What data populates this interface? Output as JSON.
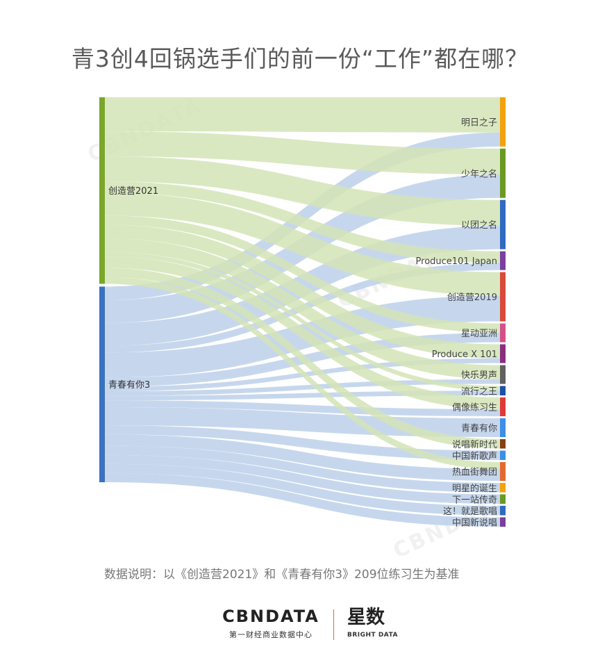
{
  "title": "青3创4回锅选手们的前一份“工作”都在哪？",
  "note": "数据说明：以《创造营2021》和《青春有你3》209位练习生为基准",
  "footer": {
    "brand1_main": "CBNDATA",
    "brand1_sub": "第一财经商业数据中心",
    "brand2_main": "星数",
    "brand2_sub": "BRIGHT DATA"
  },
  "watermark": "CBNDATA",
  "chart_data": {
    "type": "sankey",
    "sources": [
      {
        "name": "创造营2021",
        "color": "#7aa72a",
        "flow_color": "#d4e4b6"
      },
      {
        "name": "青春有你3",
        "color": "#3a72c0",
        "flow_color": "#bcd0ea"
      }
    ],
    "targets": [
      {
        "name": "明日之子",
        "color": "#f2a20c"
      },
      {
        "name": "少年之名",
        "color": "#6a9a23"
      },
      {
        "name": "以团之名",
        "color": "#2f6bbf"
      },
      {
        "name": "Produce101 Japan",
        "color": "#7a3fa1"
      },
      {
        "name": "创造营2019",
        "color": "#d94a3a"
      },
      {
        "name": "星动亚洲",
        "color": "#d4508a"
      },
      {
        "name": "Produce X 101",
        "color": "#8a2f7f"
      },
      {
        "name": "快乐男声",
        "color": "#616161"
      },
      {
        "name": "流行之王",
        "color": "#1f4fa6"
      },
      {
        "name": "偶像练习生",
        "color": "#de3a3a"
      },
      {
        "name": "青春有你",
        "color": "#3b8fe6"
      },
      {
        "name": "说唱新时代",
        "color": "#8a3e14"
      },
      {
        "name": "中国新歌声",
        "color": "#3b8fe6"
      },
      {
        "name": "热血街舞团",
        "color": "#e4682e"
      },
      {
        "name": "明星的诞生",
        "color": "#f2a20c"
      },
      {
        "name": "下一站传奇",
        "color": "#6a9a23"
      },
      {
        "name": "这！就是歌唱",
        "color": "#2f6bbf"
      },
      {
        "name": "中国新说唱",
        "color": "#7a3fa1"
      }
    ],
    "links": [
      {
        "source": "创造营2021",
        "target": "明日之子",
        "value": 15
      },
      {
        "source": "青春有你3",
        "target": "明日之子",
        "value": 6
      },
      {
        "source": "创造营2021",
        "target": "少年之名",
        "value": 11
      },
      {
        "source": "青春有你3",
        "target": "少年之名",
        "value": 10
      },
      {
        "source": "创造营2021",
        "target": "以团之名",
        "value": 11
      },
      {
        "source": "青春有你3",
        "target": "以团之名",
        "value": 10
      },
      {
        "source": "创造营2021",
        "target": "Produce101 Japan",
        "value": 5
      },
      {
        "source": "青春有你3",
        "target": "Produce101 Japan",
        "value": 3
      },
      {
        "source": "创造营2021",
        "target": "创造营2019",
        "value": 10
      },
      {
        "source": "青春有你3",
        "target": "创造营2019",
        "value": 11
      },
      {
        "source": "创造营2021",
        "target": "星动亚洲",
        "value": 4
      },
      {
        "source": "青春有你3",
        "target": "星动亚洲",
        "value": 4
      },
      {
        "source": "创造营2021",
        "target": "Produce X 101",
        "value": 6
      },
      {
        "source": "青春有你3",
        "target": "Produce X 101",
        "value": 2
      },
      {
        "source": "创造营2021",
        "target": "快乐男声",
        "value": 6
      },
      {
        "source": "青春有你3",
        "target": "快乐男声",
        "value": 2
      },
      {
        "source": "创造营2021",
        "target": "流行之王",
        "value": 2
      },
      {
        "source": "青春有你3",
        "target": "流行之王",
        "value": 2
      },
      {
        "source": "创造营2021",
        "target": "偶像练习生",
        "value": 5
      },
      {
        "source": "青春有你3",
        "target": "偶像练习生",
        "value": 3
      },
      {
        "source": "青春有你3",
        "target": "青春有你",
        "value": 8
      },
      {
        "source": "创造营2021",
        "target": "说唱新时代",
        "value": 4
      },
      {
        "source": "青春有你3",
        "target": "中国新歌声",
        "value": 4
      },
      {
        "source": "创造营2021",
        "target": "热血街舞团",
        "value": 3
      },
      {
        "source": "青春有你3",
        "target": "热血街舞团",
        "value": 5
      },
      {
        "source": "青春有你3",
        "target": "明星的诞生",
        "value": 4
      },
      {
        "source": "青春有你3",
        "target": "下一站传奇",
        "value": 4
      },
      {
        "source": "青春有你3",
        "target": "这！就是歌唱",
        "value": 4
      },
      {
        "source": "青春有你3",
        "target": "中国新说唱",
        "value": 4
      }
    ]
  }
}
